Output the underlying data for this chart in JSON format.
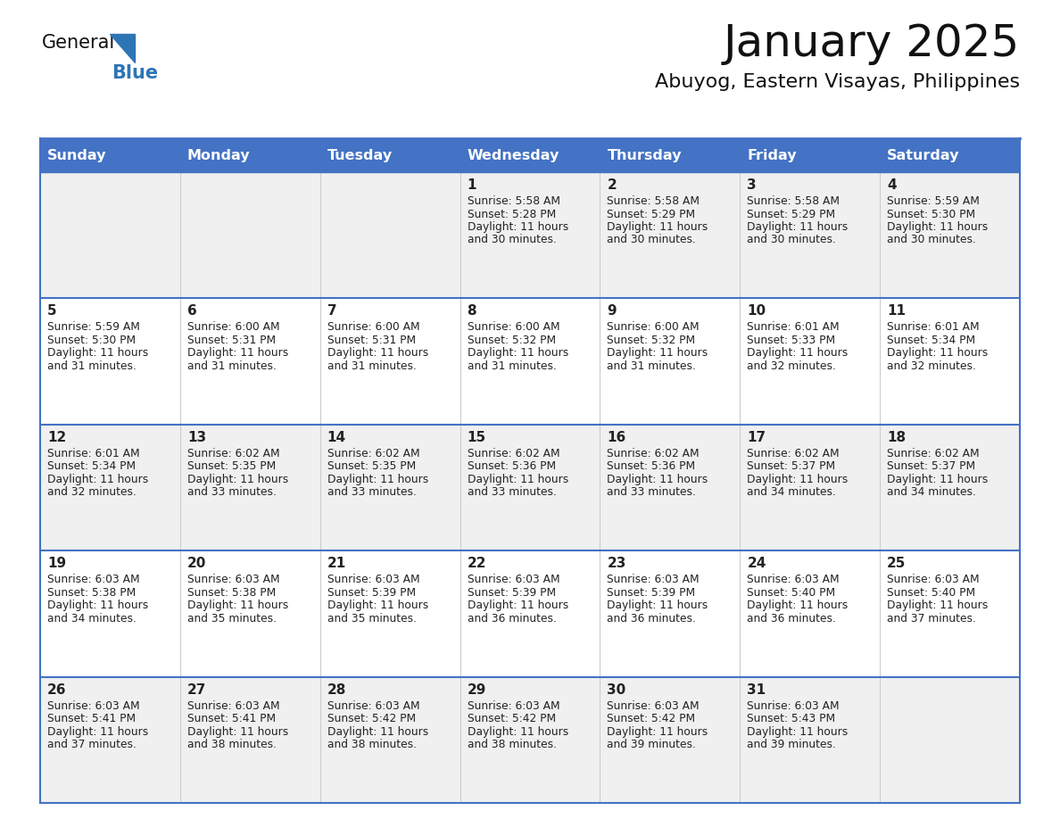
{
  "title": "January 2025",
  "subtitle": "Abuyog, Eastern Visayas, Philippines",
  "days_of_week": [
    "Sunday",
    "Monday",
    "Tuesday",
    "Wednesday",
    "Thursday",
    "Friday",
    "Saturday"
  ],
  "header_bg": "#4472C4",
  "header_text": "#FFFFFF",
  "cell_bg_white": "#FFFFFF",
  "cell_bg_gray": "#F0F0F0",
  "border_color": "#4472C4",
  "separator_color": "#cccccc",
  "day_num_color": "#222222",
  "text_color": "#222222",
  "title_color": "#111111",
  "logo_general_color": "#111111",
  "logo_blue_color": "#2E75B6",
  "calendar_data": [
    [
      {
        "day": null,
        "sunrise": null,
        "sunset": null,
        "daylight_line1": null,
        "daylight_line2": null
      },
      {
        "day": null,
        "sunrise": null,
        "sunset": null,
        "daylight_line1": null,
        "daylight_line2": null
      },
      {
        "day": null,
        "sunrise": null,
        "sunset": null,
        "daylight_line1": null,
        "daylight_line2": null
      },
      {
        "day": 1,
        "sunrise": "5:58 AM",
        "sunset": "5:28 PM",
        "daylight_line1": "Daylight: 11 hours",
        "daylight_line2": "and 30 minutes."
      },
      {
        "day": 2,
        "sunrise": "5:58 AM",
        "sunset": "5:29 PM",
        "daylight_line1": "Daylight: 11 hours",
        "daylight_line2": "and 30 minutes."
      },
      {
        "day": 3,
        "sunrise": "5:58 AM",
        "sunset": "5:29 PM",
        "daylight_line1": "Daylight: 11 hours",
        "daylight_line2": "and 30 minutes."
      },
      {
        "day": 4,
        "sunrise": "5:59 AM",
        "sunset": "5:30 PM",
        "daylight_line1": "Daylight: 11 hours",
        "daylight_line2": "and 30 minutes."
      }
    ],
    [
      {
        "day": 5,
        "sunrise": "5:59 AM",
        "sunset": "5:30 PM",
        "daylight_line1": "Daylight: 11 hours",
        "daylight_line2": "and 31 minutes."
      },
      {
        "day": 6,
        "sunrise": "6:00 AM",
        "sunset": "5:31 PM",
        "daylight_line1": "Daylight: 11 hours",
        "daylight_line2": "and 31 minutes."
      },
      {
        "day": 7,
        "sunrise": "6:00 AM",
        "sunset": "5:31 PM",
        "daylight_line1": "Daylight: 11 hours",
        "daylight_line2": "and 31 minutes."
      },
      {
        "day": 8,
        "sunrise": "6:00 AM",
        "sunset": "5:32 PM",
        "daylight_line1": "Daylight: 11 hours",
        "daylight_line2": "and 31 minutes."
      },
      {
        "day": 9,
        "sunrise": "6:00 AM",
        "sunset": "5:32 PM",
        "daylight_line1": "Daylight: 11 hours",
        "daylight_line2": "and 31 minutes."
      },
      {
        "day": 10,
        "sunrise": "6:01 AM",
        "sunset": "5:33 PM",
        "daylight_line1": "Daylight: 11 hours",
        "daylight_line2": "and 32 minutes."
      },
      {
        "day": 11,
        "sunrise": "6:01 AM",
        "sunset": "5:34 PM",
        "daylight_line1": "Daylight: 11 hours",
        "daylight_line2": "and 32 minutes."
      }
    ],
    [
      {
        "day": 12,
        "sunrise": "6:01 AM",
        "sunset": "5:34 PM",
        "daylight_line1": "Daylight: 11 hours",
        "daylight_line2": "and 32 minutes."
      },
      {
        "day": 13,
        "sunrise": "6:02 AM",
        "sunset": "5:35 PM",
        "daylight_line1": "Daylight: 11 hours",
        "daylight_line2": "and 33 minutes."
      },
      {
        "day": 14,
        "sunrise": "6:02 AM",
        "sunset": "5:35 PM",
        "daylight_line1": "Daylight: 11 hours",
        "daylight_line2": "and 33 minutes."
      },
      {
        "day": 15,
        "sunrise": "6:02 AM",
        "sunset": "5:36 PM",
        "daylight_line1": "Daylight: 11 hours",
        "daylight_line2": "and 33 minutes."
      },
      {
        "day": 16,
        "sunrise": "6:02 AM",
        "sunset": "5:36 PM",
        "daylight_line1": "Daylight: 11 hours",
        "daylight_line2": "and 33 minutes."
      },
      {
        "day": 17,
        "sunrise": "6:02 AM",
        "sunset": "5:37 PM",
        "daylight_line1": "Daylight: 11 hours",
        "daylight_line2": "and 34 minutes."
      },
      {
        "day": 18,
        "sunrise": "6:02 AM",
        "sunset": "5:37 PM",
        "daylight_line1": "Daylight: 11 hours",
        "daylight_line2": "and 34 minutes."
      }
    ],
    [
      {
        "day": 19,
        "sunrise": "6:03 AM",
        "sunset": "5:38 PM",
        "daylight_line1": "Daylight: 11 hours",
        "daylight_line2": "and 34 minutes."
      },
      {
        "day": 20,
        "sunrise": "6:03 AM",
        "sunset": "5:38 PM",
        "daylight_line1": "Daylight: 11 hours",
        "daylight_line2": "and 35 minutes."
      },
      {
        "day": 21,
        "sunrise": "6:03 AM",
        "sunset": "5:39 PM",
        "daylight_line1": "Daylight: 11 hours",
        "daylight_line2": "and 35 minutes."
      },
      {
        "day": 22,
        "sunrise": "6:03 AM",
        "sunset": "5:39 PM",
        "daylight_line1": "Daylight: 11 hours",
        "daylight_line2": "and 36 minutes."
      },
      {
        "day": 23,
        "sunrise": "6:03 AM",
        "sunset": "5:39 PM",
        "daylight_line1": "Daylight: 11 hours",
        "daylight_line2": "and 36 minutes."
      },
      {
        "day": 24,
        "sunrise": "6:03 AM",
        "sunset": "5:40 PM",
        "daylight_line1": "Daylight: 11 hours",
        "daylight_line2": "and 36 minutes."
      },
      {
        "day": 25,
        "sunrise": "6:03 AM",
        "sunset": "5:40 PM",
        "daylight_line1": "Daylight: 11 hours",
        "daylight_line2": "and 37 minutes."
      }
    ],
    [
      {
        "day": 26,
        "sunrise": "6:03 AM",
        "sunset": "5:41 PM",
        "daylight_line1": "Daylight: 11 hours",
        "daylight_line2": "and 37 minutes."
      },
      {
        "day": 27,
        "sunrise": "6:03 AM",
        "sunset": "5:41 PM",
        "daylight_line1": "Daylight: 11 hours",
        "daylight_line2": "and 38 minutes."
      },
      {
        "day": 28,
        "sunrise": "6:03 AM",
        "sunset": "5:42 PM",
        "daylight_line1": "Daylight: 11 hours",
        "daylight_line2": "and 38 minutes."
      },
      {
        "day": 29,
        "sunrise": "6:03 AM",
        "sunset": "5:42 PM",
        "daylight_line1": "Daylight: 11 hours",
        "daylight_line2": "and 38 minutes."
      },
      {
        "day": 30,
        "sunrise": "6:03 AM",
        "sunset": "5:42 PM",
        "daylight_line1": "Daylight: 11 hours",
        "daylight_line2": "and 39 minutes."
      },
      {
        "day": 31,
        "sunrise": "6:03 AM",
        "sunset": "5:43 PM",
        "daylight_line1": "Daylight: 11 hours",
        "daylight_line2": "and 39 minutes."
      },
      {
        "day": null,
        "sunrise": null,
        "sunset": null,
        "daylight_line1": null,
        "daylight_line2": null
      }
    ]
  ]
}
